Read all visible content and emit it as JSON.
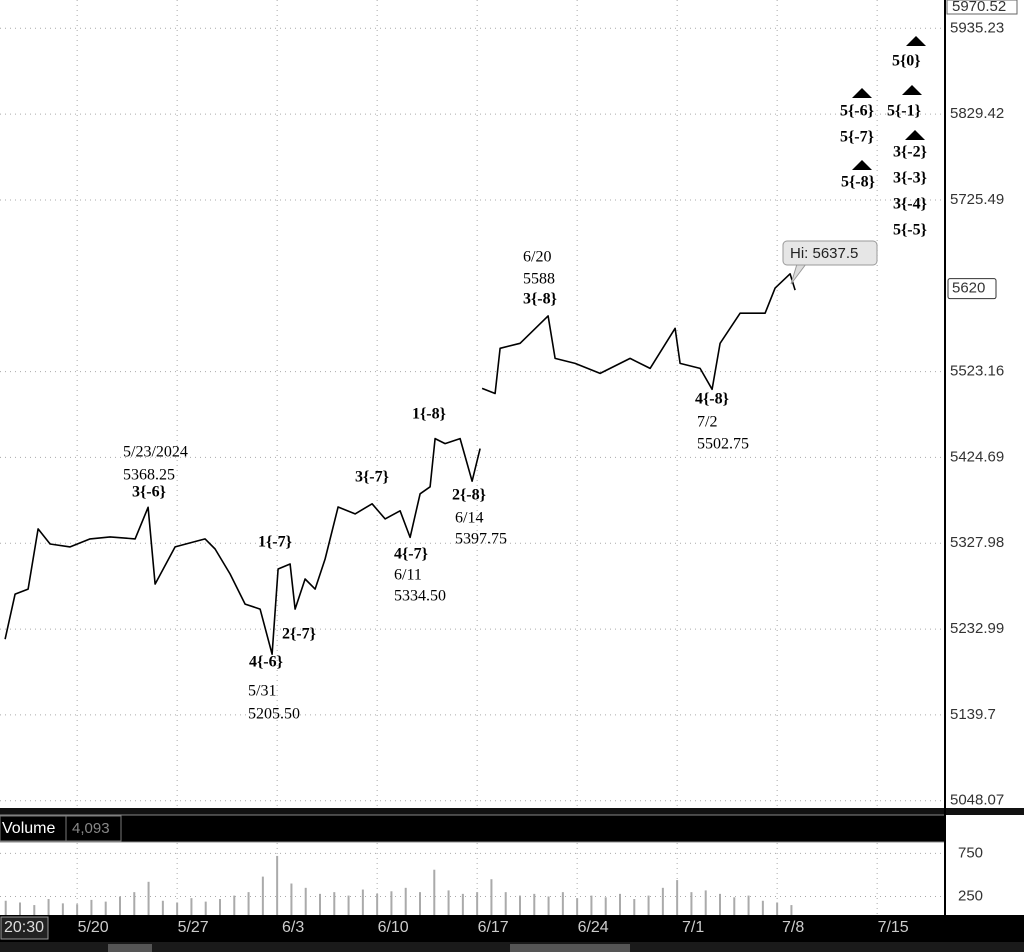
{
  "chart_data": {
    "type": "line",
    "log_scale": true,
    "grid": true,
    "color": "#000000",
    "xlim": [
      -5.4,
      60.75
    ],
    "ylim": [
      5040.4,
      5970.52
    ],
    "xticks": [
      {
        "value": 0,
        "label": "5/20"
      },
      {
        "value": 7,
        "label": "5/27"
      },
      {
        "value": 14,
        "label": "6/3"
      },
      {
        "value": 21,
        "label": "6/10"
      },
      {
        "value": 28,
        "label": "6/17"
      },
      {
        "value": 35,
        "label": "6/24"
      },
      {
        "value": 42,
        "label": "7/1"
      },
      {
        "value": 49,
        "label": "7/8"
      },
      {
        "value": 56,
        "label": "7/15"
      }
    ],
    "yticks": [
      5048.07,
      5139.7,
      5232.99,
      5327.98,
      5424.69,
      5523.16,
      5725.49,
      5829.42,
      5935.23
    ],
    "last_price": 5620,
    "time_label": "20:30",
    "x": [
      -5.04,
      -4.34,
      -3.43,
      -2.73,
      -1.89,
      -0.49,
      0.91,
      2.31,
      4.06,
      4.97,
      5.46,
      6.86,
      8.96,
      9.66,
      10.71,
      11.76,
      12.81,
      13.65,
      14.07,
      14.91,
      15.26,
      15.96,
      16.66,
      17.36,
      18.27,
      19.46,
      20.65,
      21.56,
      22.61,
      23.31,
      24.01,
      24.71,
      25.06,
      25.76,
      26.81,
      27.65,
      28.21,
      28.28,
      28.35,
      29.26,
      29.61,
      31.01,
      32.97,
      33.46,
      34.86,
      36.61,
      38.71,
      40.11,
      41.86,
      42.21,
      43.61,
      44.45,
      45.01,
      46.41,
      48.16,
      48.86,
      49.91,
      50.26
    ],
    "values": [
      5221.9,
      5271.5,
      5277.0,
      5344.0,
      5327.2,
      5323.9,
      5332.8,
      5335.1,
      5332.8,
      5368.25,
      5282.6,
      5323.9,
      5332.8,
      5321.6,
      5293.8,
      5260.5,
      5255.0,
      5205.5,
      5299.3,
      5304.9,
      5255.0,
      5288.2,
      5277.0,
      5310.4,
      5368.6,
      5360.9,
      5372.2,
      5355.3,
      5364.3,
      5334.5,
      5383.5,
      5391.4,
      5446.1,
      5440.4,
      5446.1,
      5397.75,
      5434.7,
      null,
      5503.7,
      5497.9,
      5550.2,
      5556.0,
      5588,
      5538.5,
      5532.7,
      5521.1,
      5538.5,
      5526.9,
      5573.5,
      5532.7,
      5526.9,
      5502.75,
      5556.0,
      5591.2,
      5591.2,
      5620.7,
      5637.5,
      5618.3
    ],
    "hi_label": "Hi: 5637.5",
    "annotations": [
      "5/23/2024",
      "5368.25",
      "3{-6}",
      "1{-7}",
      "2{-7}",
      "4{-6}",
      "5/31",
      "5205.50",
      "3{-7}",
      "4{-7}",
      "6/11",
      "5334.50",
      "1{-8}",
      "2{-8}",
      "6/14",
      "5397.75",
      "6/20",
      "5588",
      "3{-8}",
      "4{-8}",
      "7/2",
      "5502.75",
      "5{0}",
      "5{-6}",
      "5{-1}",
      "5{-7}",
      "3{-2}",
      "3{-3}",
      "5{-8}",
      "3{-4}",
      "5{-5}"
    ],
    "volume": {
      "label": "Volume",
      "last_label": "4,093",
      "color": "#aaaaaa",
      "ylim": [
        0,
        870
      ],
      "yticks": [
        250,
        750
      ],
      "x": [
        -5,
        -4,
        -3,
        -2,
        -1,
        0,
        1,
        2,
        3,
        4,
        5,
        6,
        7,
        8,
        9,
        10,
        11,
        12,
        13,
        14,
        15,
        16,
        17,
        18,
        19,
        20,
        21,
        22,
        23,
        24,
        25,
        26,
        27,
        28,
        29,
        30,
        31,
        32,
        33,
        34,
        35,
        36,
        37,
        38,
        39,
        40,
        41,
        42,
        43,
        44,
        45,
        46,
        47,
        48,
        49,
        50
      ],
      "values": [
        200,
        180,
        150,
        220,
        170,
        160,
        210,
        190,
        250,
        300,
        420,
        200,
        180,
        230,
        190,
        220,
        260,
        300,
        480,
        720,
        400,
        350,
        280,
        300,
        260,
        330,
        280,
        310,
        350,
        300,
        560,
        320,
        280,
        300,
        450,
        300,
        260,
        280,
        250,
        300,
        230,
        260,
        240,
        280,
        220,
        260,
        350,
        440,
        300,
        320,
        280,
        240,
        260,
        200,
        180,
        150
      ]
    }
  }
}
